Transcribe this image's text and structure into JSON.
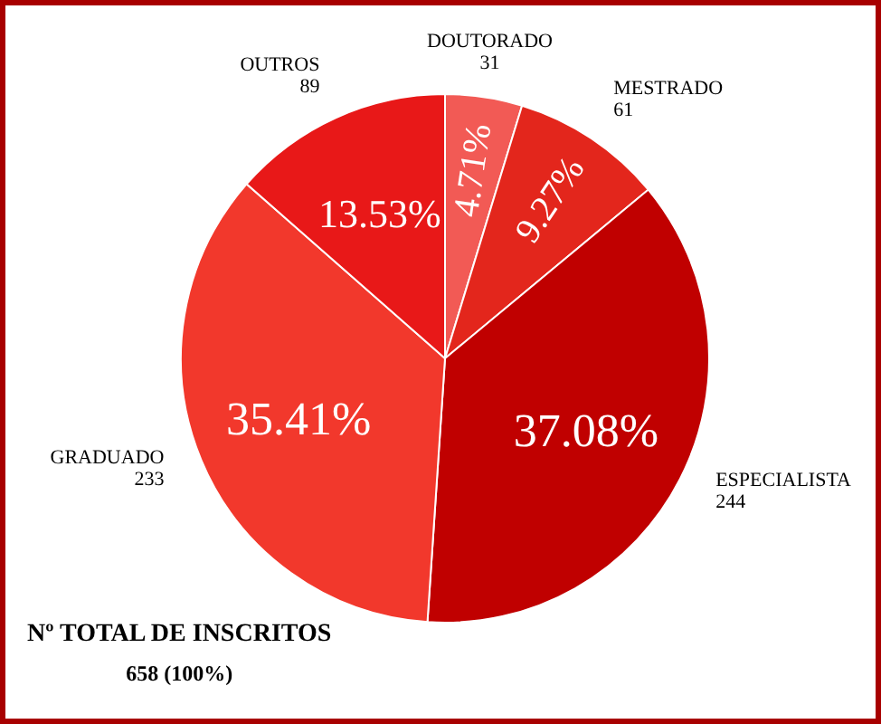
{
  "chart_data": {
    "type": "pie",
    "categories": [
      "DOUTORADO",
      "MESTRADO",
      "ESPECIALISTA",
      "GRADUADO",
      "OUTROS"
    ],
    "values": [
      4.71,
      9.27,
      37.08,
      35.41,
      13.53
    ],
    "colors": [
      "#f25a55",
      "#e3261c",
      "#c00000",
      "#f2382c",
      "#e81818"
    ],
    "value_labels": [
      "4.71%",
      "9.27%",
      "37.08%",
      "35.41%",
      "13.53%"
    ],
    "annotations": [
      {
        "text": "31",
        "x": "DOUTORADO"
      },
      {
        "text": "61",
        "x": "MESTRADO"
      },
      {
        "text": "244",
        "x": "ESPECIALISTA"
      },
      {
        "text": "233",
        "x": "GRADUADO"
      },
      {
        "text": "89",
        "x": "OUTROS"
      },
      "Nº TOTAL DE INSCRITOS",
      "658 (100%)"
    ]
  }
}
